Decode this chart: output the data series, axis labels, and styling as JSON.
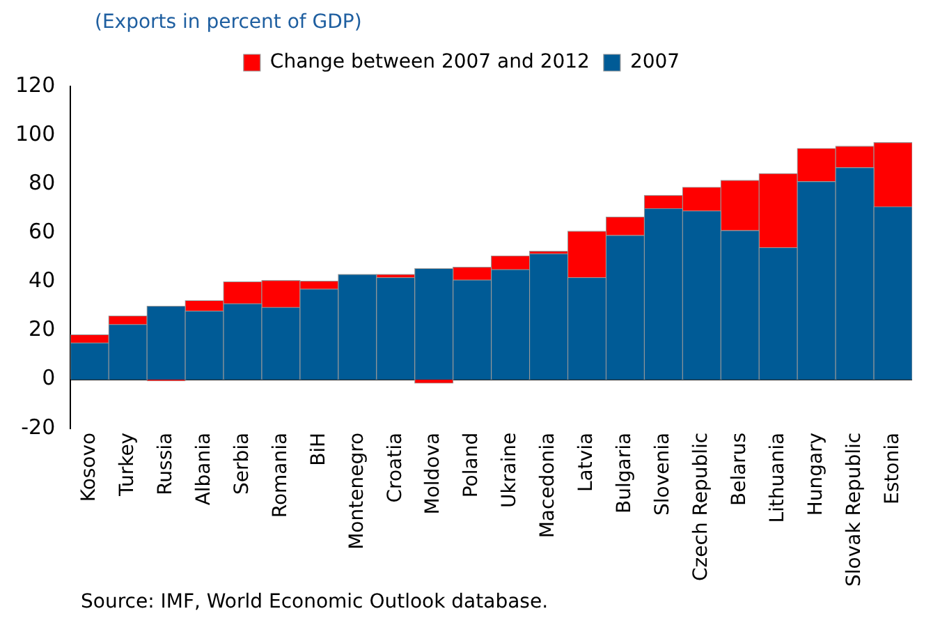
{
  "chart_data": {
    "type": "bar",
    "subtitle": "(Exports in percent of GDP)",
    "stacked": true,
    "categories": [
      "Kosovo",
      "Turkey",
      "Russia",
      "Albania",
      "Serbia",
      "Romania",
      "BiH",
      "Montenegro",
      "Croatia",
      "Moldova",
      "Poland",
      "Ukraine",
      "Macedonia",
      "Latvia",
      "Bulgaria",
      "Slovenia",
      "Czech Republic",
      "Belarus",
      "Lithuania",
      "Hungary",
      "Slovak Republic",
      "Estonia"
    ],
    "series": [
      {
        "name": "2007",
        "color": "#005b96",
        "values": [
          15,
          22.5,
          30,
          28,
          31,
          29.5,
          37,
          43,
          41.7,
          45.4,
          40.7,
          45,
          51.5,
          41.7,
          59,
          70,
          69,
          61,
          54,
          81,
          86.7,
          70.7
        ]
      },
      {
        "name": "Change between 2007 and 2012",
        "color": "#ff0000",
        "values": [
          3.3,
          3.5,
          -0.5,
          4.3,
          9,
          11,
          3.3,
          0,
          1.3,
          -1.5,
          5.3,
          5.6,
          1,
          19,
          7.5,
          5.4,
          9.7,
          20.5,
          30.3,
          13.6,
          8.8,
          26.3
        ]
      }
    ],
    "ylim": [
      -20,
      120
    ],
    "yticks": [
      -20,
      0,
      20,
      40,
      60,
      80,
      100,
      120
    ],
    "grid": false,
    "legend": "top",
    "ref_lines": [
      {
        "axis": "y",
        "value": 0,
        "color": "#000000"
      }
    ],
    "annotations": [
      "Source: IMF, World Economic Outlook database."
    ]
  }
}
